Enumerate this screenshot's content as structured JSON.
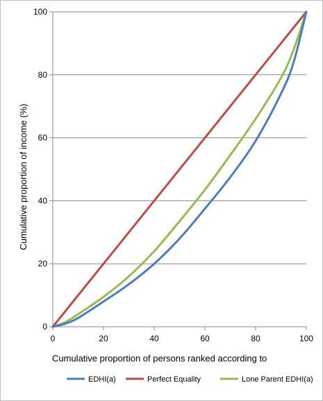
{
  "chart_data": {
    "type": "line",
    "title": "",
    "xlabel": "Cumulative proportion of persons ranked according to",
    "ylabel": "Cumulative proportion of income (%)",
    "xlim": [
      0,
      100
    ],
    "ylim": [
      0,
      100
    ],
    "xticks": [
      0,
      20,
      40,
      60,
      80,
      100
    ],
    "yticks": [
      0,
      20,
      40,
      60,
      80,
      100
    ],
    "grid": "horizontal",
    "legend_position": "bottom",
    "series": [
      {
        "name": "EDHI(a)",
        "color": "#4a7ebb",
        "points": [
          [
            0,
            0
          ],
          [
            5,
            1
          ],
          [
            10,
            2.8
          ],
          [
            20,
            8
          ],
          [
            30,
            13.5
          ],
          [
            40,
            20
          ],
          [
            50,
            28
          ],
          [
            60,
            37.5
          ],
          [
            70,
            47.5
          ],
          [
            80,
            59
          ],
          [
            90,
            74
          ],
          [
            95,
            84
          ],
          [
            100,
            100
          ]
        ]
      },
      {
        "name": "Perfect Equality",
        "color": "#be4b48",
        "points": [
          [
            0,
            0
          ],
          [
            100,
            100
          ]
        ]
      },
      {
        "name": "Lone Parent EDHI(a)",
        "color": "#98b954",
        "points": [
          [
            0,
            0
          ],
          [
            5,
            1.5
          ],
          [
            10,
            4
          ],
          [
            20,
            9.5
          ],
          [
            30,
            16
          ],
          [
            40,
            24
          ],
          [
            50,
            33.5
          ],
          [
            60,
            43.5
          ],
          [
            70,
            54.5
          ],
          [
            80,
            66
          ],
          [
            90,
            79
          ],
          [
            95,
            88
          ],
          [
            100,
            100
          ]
        ]
      }
    ]
  }
}
